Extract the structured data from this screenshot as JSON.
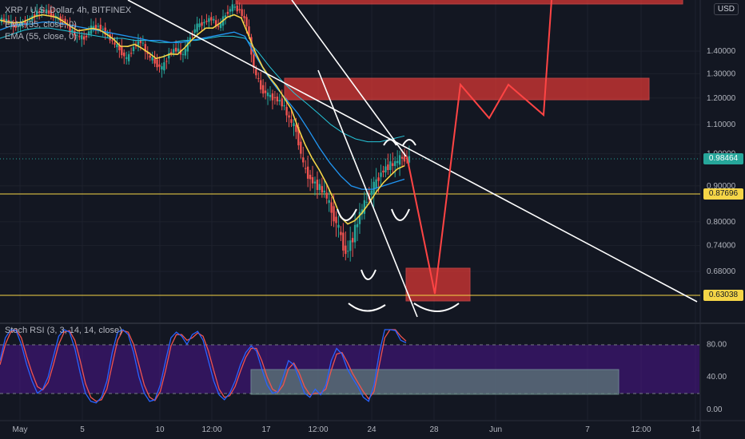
{
  "legend": {
    "symbol": "XRP / U.S. Dollar, 4h, BITFINEX",
    "ema1": "EMA (35, close, 0)",
    "ema2": "EMA (55, close, 0)",
    "stoch": "Stoch RSI (3, 3, 14, 14, close)"
  },
  "currency": "USD",
  "price_tags": {
    "current": "0.98464",
    "support1": "0.87696",
    "support2": "0.63038"
  },
  "colors": {
    "background": "#131722",
    "candle_up": "#26a69a",
    "candle_down": "#ef5350",
    "ema_fast": "#f5d547",
    "ema_mid": "#2196f3",
    "ema_slow": "#26c6da",
    "zone": "#e53935",
    "projection": "#ff4444",
    "trendline": "#ffffff",
    "support_line": "#f5d547",
    "stoch_k": "#2962ff",
    "stoch_d": "#ef5350",
    "stoch_band": "#4a148c"
  },
  "chart_data": [
    {
      "type": "candlestick",
      "title": "XRP / U.S. Dollar, 4h, BITFINEX",
      "y_ticks": [
        "1.40000",
        "1.30000",
        "1.20000",
        "1.10000",
        "1.00000",
        "0.90000",
        "0.80000",
        "0.74000",
        "0.68000"
      ],
      "x_ticks": [
        "May",
        "5",
        "10",
        "12:00",
        "17",
        "12:00",
        "24",
        "28",
        "Jun",
        "7",
        "12:00",
        "14"
      ],
      "horizontal_levels": [
        0.87696,
        0.63038
      ],
      "current_price": 0.98464,
      "price_series_approx": [
        1.55,
        1.52,
        1.53,
        1.54,
        1.58,
        1.6,
        1.59,
        1.56,
        1.55,
        1.5,
        1.47,
        1.46,
        1.51,
        1.52,
        1.49,
        1.44,
        1.41,
        1.36,
        1.42,
        1.45,
        1.38,
        1.35,
        1.32,
        1.39,
        1.41,
        1.38,
        1.47,
        1.52,
        1.54,
        1.56,
        1.51,
        1.58,
        1.62,
        1.6,
        1.53,
        1.32,
        1.24,
        1.21,
        1.2,
        1.18,
        1.12,
        1.08,
        0.96,
        0.92,
        0.9,
        0.88,
        0.83,
        0.78,
        0.72,
        0.76,
        0.82,
        0.86,
        0.9,
        0.94,
        0.96,
        0.97,
        0.99,
        0.98
      ],
      "ema35_approx": [
        1.5,
        1.52,
        1.53,
        1.53,
        1.54,
        1.54,
        1.53,
        1.52,
        1.51,
        1.5,
        1.49,
        1.48,
        1.47,
        1.46,
        1.45,
        1.45,
        1.44,
        1.44,
        1.45,
        1.46,
        1.47,
        1.48,
        1.49,
        1.47,
        1.38,
        1.3,
        1.24,
        1.19,
        1.14,
        1.08,
        1.02,
        0.97,
        0.93,
        0.9,
        0.89,
        0.89,
        0.9,
        0.91,
        0.92
      ],
      "ema55_approx": [
        1.46,
        1.48,
        1.5,
        1.51,
        1.51,
        1.5,
        1.49,
        1.48,
        1.47,
        1.46,
        1.46,
        1.45,
        1.45,
        1.44,
        1.44,
        1.45,
        1.45,
        1.46,
        1.47,
        1.47,
        1.46,
        1.4,
        1.33,
        1.27,
        1.22,
        1.18,
        1.14,
        1.1,
        1.07,
        1.05,
        1.04,
        1.04,
        1.05,
        1.06
      ],
      "zones": [
        {
          "top": 1.66,
          "bottom": 1.62,
          "label": ""
        },
        {
          "top": 1.27,
          "bottom": 1.19,
          "label": ""
        },
        {
          "top": 0.69,
          "bottom": 0.63,
          "label": ""
        }
      ],
      "projection_path": [
        0.98,
        0.63,
        0.95,
        1.24,
        1.14,
        1.24,
        1.16,
        1.66
      ]
    },
    {
      "type": "line",
      "title": "Stoch RSI (3, 3, 14, 14, close)",
      "y_ticks": [
        "80.00",
        "40.00",
        "0.00"
      ],
      "bands": [
        20,
        80
      ],
      "k_series_approx": [
        60,
        88,
        98,
        97,
        80,
        55,
        35,
        20,
        25,
        40,
        65,
        90,
        98,
        95,
        75,
        45,
        20,
        10,
        8,
        15,
        35,
        70,
        95,
        98,
        92,
        70,
        40,
        20,
        10,
        12,
        30,
        60,
        88,
        95,
        90,
        80,
        92,
        96,
        85,
        60,
        35,
        18,
        12,
        20,
        35,
        55,
        70,
        78,
        72,
        50,
        30,
        20,
        22,
        40,
        60,
        55,
        38,
        20,
        15,
        25,
        18,
        30,
        60,
        75,
        68,
        50,
        38,
        28,
        15,
        10,
        30,
        70,
        98,
        98,
        97,
        85,
        82
      ],
      "d_series_approx": [
        55,
        80,
        95,
        98,
        88,
        65,
        45,
        28,
        24,
        33,
        55,
        80,
        95,
        97,
        85,
        60,
        32,
        15,
        10,
        12,
        25,
        55,
        85,
        97,
        95,
        80,
        55,
        30,
        15,
        11,
        22,
        48,
        78,
        92,
        92,
        85,
        88,
        94,
        90,
        72,
        48,
        25,
        15,
        17,
        28,
        47,
        64,
        75,
        75,
        60,
        40,
        25,
        21,
        30,
        50,
        57,
        45,
        28,
        18,
        20,
        20,
        25,
        48,
        68,
        70,
        58,
        44,
        33,
        22,
        13,
        22,
        55,
        88,
        98,
        98,
        90,
        84
      ]
    }
  ]
}
